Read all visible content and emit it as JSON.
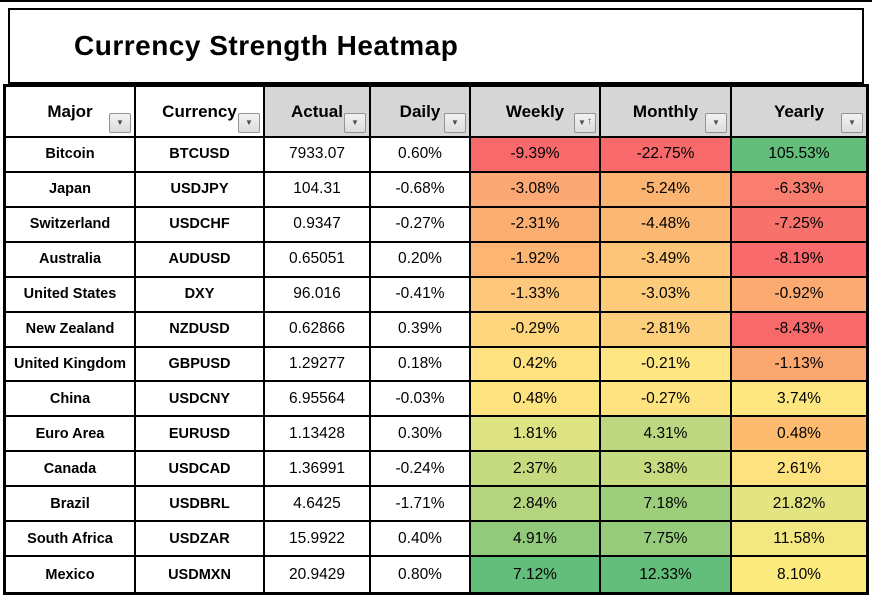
{
  "page": {
    "title": "Currency Strength Heatmap"
  },
  "colors": {
    "header_shaded_bg": "#D6D6D6",
    "border": "#000000",
    "scale_low_red": "#F8696B",
    "scale_mid_yellow": "#FFEB84",
    "scale_high_green": "#63BE7B"
  },
  "table": {
    "columns": [
      {
        "key": "major",
        "label": "Major",
        "shaded": false,
        "sorted": false
      },
      {
        "key": "currency",
        "label": "Currency",
        "shaded": false,
        "sorted": false
      },
      {
        "key": "actual",
        "label": "Actual",
        "shaded": true,
        "sorted": false
      },
      {
        "key": "daily",
        "label": "Daily",
        "shaded": true,
        "sorted": false
      },
      {
        "key": "weekly",
        "label": "Weekly",
        "shaded": true,
        "sorted": true
      },
      {
        "key": "monthly",
        "label": "Monthly",
        "shaded": true,
        "sorted": false
      },
      {
        "key": "yearly",
        "label": "Yearly",
        "shaded": true,
        "sorted": false
      }
    ],
    "filter_icon": "▼",
    "sort_icon": "↑",
    "rows": [
      {
        "major": "Bitcoin",
        "currency": "BTCUSD",
        "actual": "7933.07",
        "daily": "0.60%",
        "weekly": "-9.39%",
        "weekly_bg": "#F8696B",
        "monthly": "-22.75%",
        "monthly_bg": "#F8696B",
        "yearly": "105.53%",
        "yearly_bg": "#63BE7B"
      },
      {
        "major": "Japan",
        "currency": "USDJPY",
        "actual": "104.31",
        "daily": "-0.68%",
        "weekly": "-3.08%",
        "weekly_bg": "#FBA874",
        "monthly": "-5.24%",
        "monthly_bg": "#FBB471",
        "yearly": "-6.33%",
        "yearly_bg": "#F97E70"
      },
      {
        "major": "Switzerland",
        "currency": "USDCHF",
        "actual": "0.9347",
        "daily": "-0.27%",
        "weekly": "-2.31%",
        "weekly_bg": "#FBAE72",
        "monthly": "-4.48%",
        "monthly_bg": "#FBB873",
        "yearly": "-7.25%",
        "yearly_bg": "#F8726C"
      },
      {
        "major": "Australia",
        "currency": "AUDUSD",
        "actual": "0.65051",
        "daily": "0.20%",
        "weekly": "-1.92%",
        "weekly_bg": "#FCB573",
        "monthly": "-3.49%",
        "monthly_bg": "#FCC577",
        "yearly": "-8.19%",
        "yearly_bg": "#F86A6B"
      },
      {
        "major": "United States",
        "currency": "DXY",
        "actual": "96.016",
        "daily": "-0.41%",
        "weekly": "-1.33%",
        "weekly_bg": "#FDC87B",
        "monthly": "-3.03%",
        "monthly_bg": "#FDCC7A",
        "yearly": "-0.92%",
        "yearly_bg": "#FBAB71"
      },
      {
        "major": "New Zealand",
        "currency": "NZDUSD",
        "actual": "0.62866",
        "daily": "0.39%",
        "weekly": "-0.29%",
        "weekly_bg": "#FDD67E",
        "monthly": "-2.81%",
        "monthly_bg": "#FDCE7B",
        "yearly": "-8.43%",
        "yearly_bg": "#F8696B"
      },
      {
        "major": "United Kingdom",
        "currency": "GBPUSD",
        "actual": "1.29277",
        "daily": "0.18%",
        "weekly": "0.42%",
        "weekly_bg": "#FEE180",
        "monthly": "-0.21%",
        "monthly_bg": "#FEE682",
        "yearly": "-1.13%",
        "yearly_bg": "#FBA770"
      },
      {
        "major": "China",
        "currency": "USDCNY",
        "actual": "6.95564",
        "daily": "-0.03%",
        "weekly": "0.48%",
        "weekly_bg": "#FEE481",
        "monthly": "-0.27%",
        "monthly_bg": "#FEE480",
        "yearly": "3.74%",
        "yearly_bg": "#FEE781"
      },
      {
        "major": "Euro Area",
        "currency": "EURUSD",
        "actual": "1.13428",
        "daily": "0.30%",
        "weekly": "1.81%",
        "weekly_bg": "#DDE283",
        "monthly": "4.31%",
        "monthly_bg": "#BCD780",
        "yearly": "0.48%",
        "yearly_bg": "#FCBB6E"
      },
      {
        "major": "Canada",
        "currency": "USDCAD",
        "actual": "1.36991",
        "daily": "-0.24%",
        "weekly": "2.37%",
        "weekly_bg": "#C6DA80",
        "monthly": "3.38%",
        "monthly_bg": "#C6DA80",
        "yearly": "2.61%",
        "yearly_bg": "#FDE27F"
      },
      {
        "major": "Brazil",
        "currency": "USDBRL",
        "actual": "4.6425",
        "daily": "-1.71%",
        "weekly": "2.84%",
        "weekly_bg": "#B5D47E",
        "monthly": "7.18%",
        "monthly_bg": "#9CCE7C",
        "yearly": "21.82%",
        "yearly_bg": "#E5E482"
      },
      {
        "major": "South Africa",
        "currency": "USDZAR",
        "actual": "15.9922",
        "daily": "0.40%",
        "weekly": "4.91%",
        "weekly_bg": "#92CA7C",
        "monthly": "7.75%",
        "monthly_bg": "#95CB7B",
        "yearly": "11.58%",
        "yearly_bg": "#F2E780"
      },
      {
        "major": "Mexico",
        "currency": "USDMXN",
        "actual": "20.9429",
        "daily": "0.80%",
        "weekly": "7.12%",
        "weekly_bg": "#63BE7B",
        "monthly": "12.33%",
        "monthly_bg": "#63BE7B",
        "yearly": "8.10%",
        "yearly_bg": "#FBEA7E"
      }
    ]
  },
  "chart_data": {
    "type": "heatmap",
    "title": "Currency Strength Heatmap",
    "columns": [
      "Major",
      "Currency",
      "Actual",
      "Daily",
      "Weekly",
      "Monthly",
      "Yearly"
    ],
    "rows": [
      [
        "Bitcoin",
        "BTCUSD",
        7933.07,
        0.6,
        -9.39,
        -22.75,
        105.53
      ],
      [
        "Japan",
        "USDJPY",
        104.31,
        -0.68,
        -3.08,
        -5.24,
        -6.33
      ],
      [
        "Switzerland",
        "USDCHF",
        0.9347,
        -0.27,
        -2.31,
        -4.48,
        -7.25
      ],
      [
        "Australia",
        "AUDUSD",
        0.65051,
        0.2,
        -1.92,
        -3.49,
        -8.19
      ],
      [
        "United States",
        "DXY",
        96.016,
        -0.41,
        -1.33,
        -3.03,
        -0.92
      ],
      [
        "New Zealand",
        "NZDUSD",
        0.62866,
        0.39,
        -0.29,
        -2.81,
        -8.43
      ],
      [
        "United Kingdom",
        "GBPUSD",
        1.29277,
        0.18,
        0.42,
        -0.21,
        -1.13
      ],
      [
        "China",
        "USDCNY",
        6.95564,
        -0.03,
        0.48,
        -0.27,
        3.74
      ],
      [
        "Euro Area",
        "EURUSD",
        1.13428,
        0.3,
        1.81,
        4.31,
        0.48
      ],
      [
        "Canada",
        "USDCAD",
        1.36991,
        -0.24,
        2.37,
        3.38,
        2.61
      ],
      [
        "Brazil",
        "USDBRL",
        4.6425,
        -1.71,
        2.84,
        7.18,
        21.82
      ],
      [
        "South Africa",
        "USDZAR",
        15.9922,
        0.4,
        4.91,
        7.75,
        11.58
      ],
      [
        "Mexico",
        "USDMXN",
        20.9429,
        0.8,
        7.12,
        12.33,
        8.1
      ]
    ],
    "value_units": "Daily/Weekly/Monthly/Yearly are percent changes; Actual is price/index level",
    "color_scale": {
      "low": "#F8696B",
      "mid": "#FFEB84",
      "high": "#63BE7B",
      "applied_columns": [
        "Weekly",
        "Monthly",
        "Yearly"
      ],
      "scope": "per-column"
    },
    "sorted_by": "Weekly ascending"
  }
}
